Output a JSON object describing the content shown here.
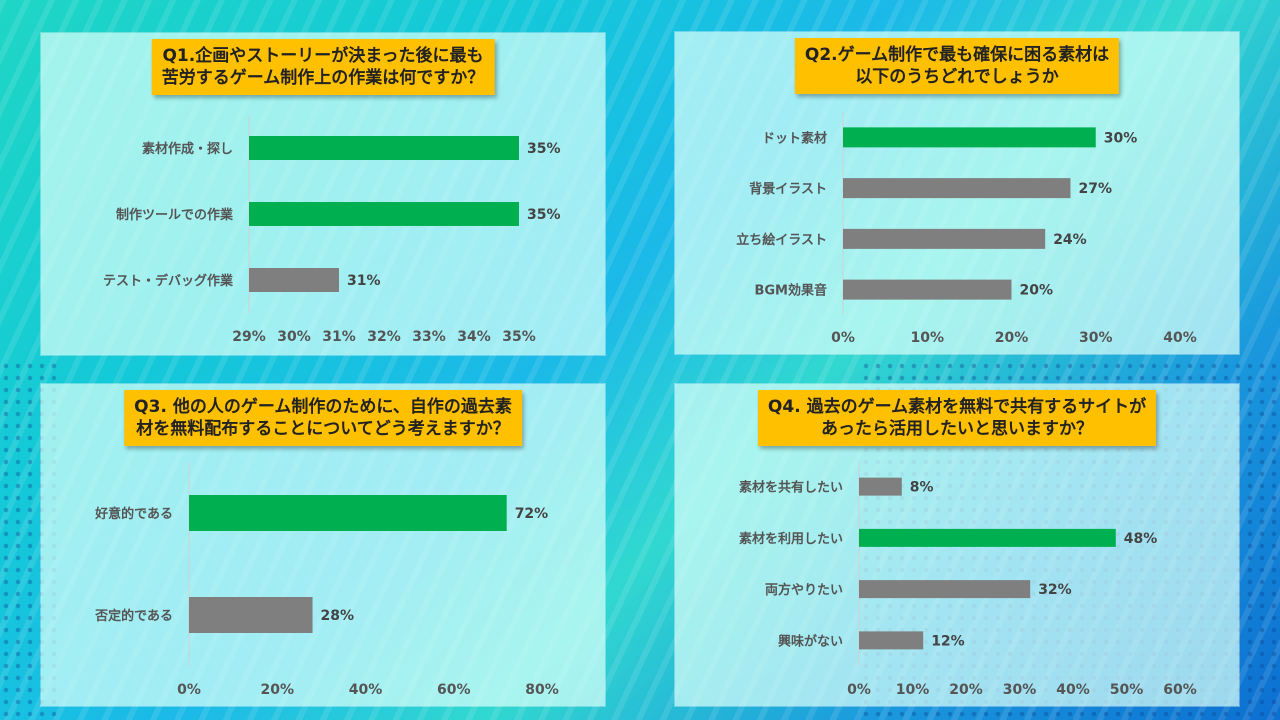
{
  "colors": {
    "highlight": "#00b050",
    "normal": "#7f7f7f",
    "title_bg": "#ffc000"
  },
  "chart_data": [
    {
      "type": "bar",
      "title": "Q1.企画やストーリーが決まった後に最も\n苦労するゲーム制作上の作業は何ですか？",
      "categories": [
        "素材作成・探し",
        "制作ツールでの作業",
        "テスト・デバッグ作業"
      ],
      "values": [
        35,
        35,
        31
      ],
      "highlight": [
        true,
        true,
        false
      ],
      "value_labels": [
        "35%",
        "35%",
        "31%"
      ],
      "xlim": [
        29,
        35
      ],
      "ticks": [
        "29%",
        "30%",
        "31%",
        "32%",
        "33%",
        "34%",
        "35%"
      ]
    },
    {
      "type": "bar",
      "title": "Q2.ゲーム制作で最も確保に困る素材は\n以下のうちどれでしょうか",
      "categories": [
        "ドット素材",
        "背景イラスト",
        "立ち絵イラスト",
        "BGM効果音"
      ],
      "values": [
        30,
        27,
        24,
        20
      ],
      "highlight": [
        true,
        false,
        false,
        false
      ],
      "value_labels": [
        "30%",
        "27%",
        "24%",
        "20%"
      ],
      "xlim": [
        0,
        40
      ],
      "ticks": [
        "0%",
        "10%",
        "20%",
        "30%",
        "40%"
      ]
    },
    {
      "type": "bar",
      "title": "Q3. 他の人のゲーム制作のために、自作の過去素\n材を無料配布することについてどう考えますか？",
      "categories": [
        "好意的である",
        "否定的である"
      ],
      "values": [
        72,
        28
      ],
      "highlight": [
        true,
        false
      ],
      "value_labels": [
        "72%",
        "28%"
      ],
      "xlim": [
        0,
        80
      ],
      "ticks": [
        "0%",
        "20%",
        "40%",
        "60%",
        "80%"
      ]
    },
    {
      "type": "bar",
      "title": "Q4. 過去のゲーム素材を無料で共有するサイトが\nあったら活用したいと思いますか？",
      "categories": [
        "素材を共有したい",
        "素材を利用したい",
        "両方やりたい",
        "興味がない"
      ],
      "values": [
        8,
        48,
        32,
        12
      ],
      "highlight": [
        false,
        true,
        false,
        false
      ],
      "value_labels": [
        "8%",
        "48%",
        "32%",
        "12%"
      ],
      "xlim": [
        0,
        60
      ],
      "ticks": [
        "0%",
        "10%",
        "20%",
        "30%",
        "40%",
        "50%",
        "60%"
      ]
    }
  ]
}
